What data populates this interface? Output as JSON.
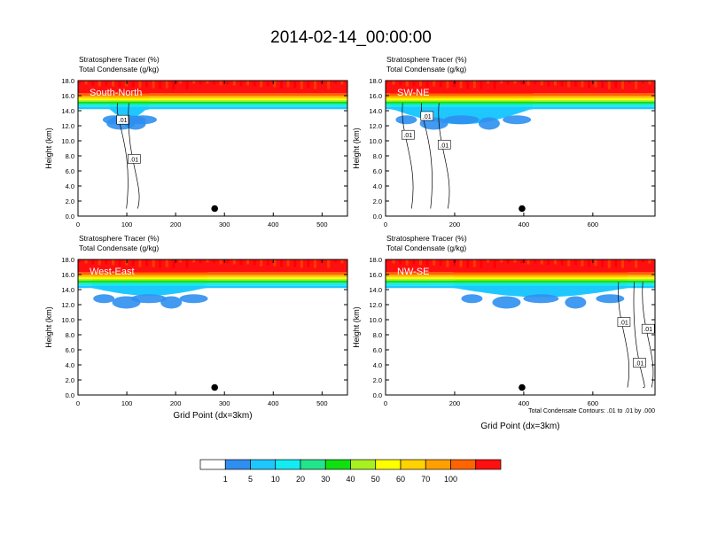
{
  "main_title": "2014-02-14_00:00:00",
  "panel_title_line1": "Stratosphere Tracer   (%)",
  "panel_title_line2": "Total Condensate   (g/kg)",
  "ylabel": "Height (km)",
  "xlabel": "Grid Point (dx=3km)",
  "contour_note": "Total Condensate Contours: .01 to .01 by .000",
  "chart_data": [
    {
      "type": "heatmap",
      "id": "south-north",
      "label": "South-North",
      "xlim": [
        0,
        552
      ],
      "ylim": [
        0,
        18
      ],
      "xticks": [
        0,
        100,
        200,
        300,
        400,
        500
      ],
      "yticks": [
        0.0,
        2.0,
        4.0,
        6.0,
        8.0,
        10.0,
        12.0,
        14.0,
        16.0,
        18.0
      ],
      "marker": {
        "x": 280,
        "y": 1.0
      },
      "contour_labels": [
        {
          "text": ".01",
          "x": 92,
          "y": 12.8
        },
        {
          "text": ".01",
          "x": 115,
          "y": 7.6
        }
      ],
      "trough_x": [
        65,
        140
      ],
      "trough_depth": 1.3
    },
    {
      "type": "heatmap",
      "id": "sw-ne",
      "label": "SW-NE",
      "xlim": [
        0,
        780
      ],
      "ylim": [
        0,
        18
      ],
      "xticks": [
        0,
        200,
        400,
        600
      ],
      "yticks": [
        0.0,
        2.0,
        4.0,
        6.0,
        8.0,
        10.0,
        12.0,
        14.0,
        16.0,
        18.0
      ],
      "marker": {
        "x": 395,
        "y": 1.0
      },
      "contour_labels": [
        {
          "text": ".01",
          "x": 120,
          "y": 13.3
        },
        {
          "text": ".01",
          "x": 65,
          "y": 10.8
        },
        {
          "text": ".01",
          "x": 170,
          "y": 9.5
        }
      ],
      "trough_x": [
        20,
        420
      ],
      "trough_depth": 2.0
    },
    {
      "type": "heatmap",
      "id": "west-east",
      "label": "West-East",
      "xlim": [
        0,
        552
      ],
      "ylim": [
        0,
        18
      ],
      "xticks": [
        0,
        100,
        200,
        300,
        400,
        500
      ],
      "yticks": [
        0.0,
        2.0,
        4.0,
        6.0,
        8.0,
        10.0,
        12.0,
        14.0,
        16.0,
        18.0
      ],
      "marker": {
        "x": 280,
        "y": 1.0
      },
      "contour_labels": [],
      "trough_x": [
        30,
        260
      ],
      "trough_depth": 1.0
    },
    {
      "type": "heatmap",
      "id": "nw-se",
      "label": "NW-SE",
      "xlim": [
        0,
        780
      ],
      "ylim": [
        0,
        18
      ],
      "xticks": [
        0,
        200,
        400,
        600
      ],
      "yticks": [
        0.0,
        2.0,
        4.0,
        6.0,
        8.0,
        10.0,
        12.0,
        14.0,
        16.0,
        18.0
      ],
      "marker": {
        "x": 395,
        "y": 1.0
      },
      "contour_labels": [
        {
          "text": ".01",
          "x": 690,
          "y": 9.7
        },
        {
          "text": ".01",
          "x": 760,
          "y": 8.8
        },
        {
          "text": ".01",
          "x": 735,
          "y": 4.3
        }
      ],
      "trough_x": [
        200,
        700
      ],
      "trough_depth": 1.2
    }
  ],
  "colorbar": {
    "labels": [
      "1",
      "5",
      "10",
      "20",
      "30",
      "40",
      "50",
      "60",
      "70",
      "100"
    ],
    "colors": [
      "#ffffff",
      "#2f8ff0",
      "#1ec8ff",
      "#12ecf2",
      "#22e48c",
      "#10e010",
      "#a8f020",
      "#ffff00",
      "#ffd200",
      "#ffa000",
      "#ff6400",
      "#ff1010"
    ]
  }
}
